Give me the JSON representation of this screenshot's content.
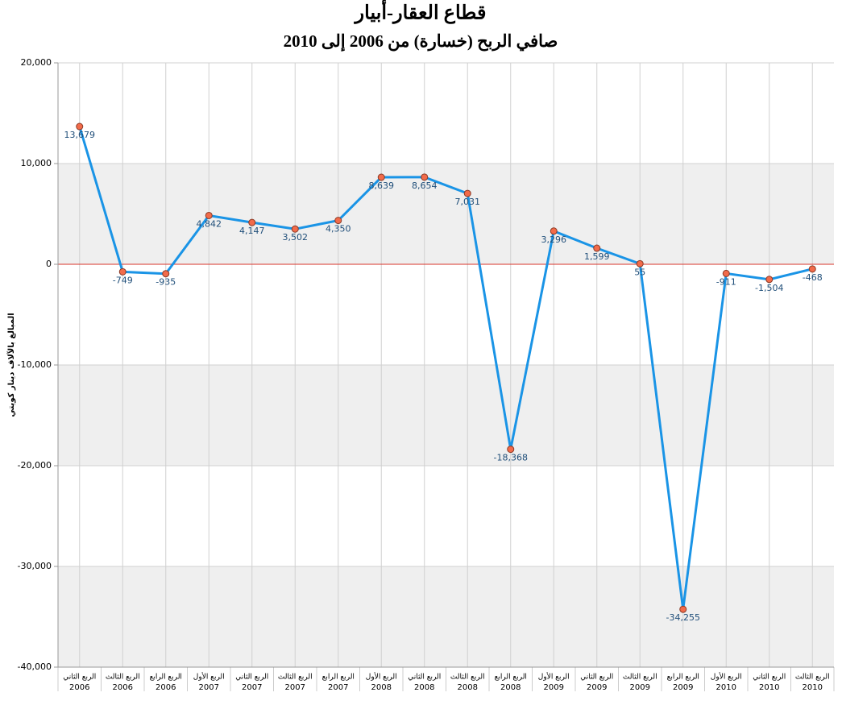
{
  "chart_data": {
    "type": "line",
    "title": "قطاع العقار-أبيار",
    "subtitle": "صافي الربح (خسارة) من 2006 إلى 2010",
    "y_label": "المبالغ بالآلاف دينار كويتي",
    "categories": [
      [
        "الربع الثاني",
        "2006"
      ],
      [
        "الربع الثالث",
        "2006"
      ],
      [
        "الربع الرابع",
        "2006"
      ],
      [
        "الربع الأول",
        "2007"
      ],
      [
        "الربع الثاني",
        "2007"
      ],
      [
        "الربع الثالث",
        "2007"
      ],
      [
        "الربع الرابع",
        "2007"
      ],
      [
        "الربع الأول",
        "2008"
      ],
      [
        "الربع الثاني",
        "2008"
      ],
      [
        "الربع الثالث",
        "2008"
      ],
      [
        "الربع الرابع",
        "2008"
      ],
      [
        "الربع الأول",
        "2009"
      ],
      [
        "الربع الثاني",
        "2009"
      ],
      [
        "الربع الثالث",
        "2009"
      ],
      [
        "الربع الرابع",
        "2009"
      ],
      [
        "الربع الأول",
        "2010"
      ],
      [
        "الربع الثاني",
        "2010"
      ],
      [
        "الربع الثالث",
        "2010"
      ]
    ],
    "values": [
      13679,
      -749,
      -935,
      4842,
      4147,
      3502,
      4350,
      8639,
      8654,
      7031,
      -18368,
      3296,
      1599,
      55,
      -34255,
      -911,
      -1504,
      -468
    ],
    "value_labels": [
      "13,679",
      "-749",
      "-935",
      "4,842",
      "4,147",
      "3,502",
      "4,350",
      "8,639",
      "8,654",
      "7,031",
      "-18,368",
      "3,296",
      "1,599",
      "55",
      "-34,255",
      "-911",
      "-1,504",
      "-468"
    ],
    "color": "#1a94e6",
    "marker_color": "#f26b4a",
    "band_color": "#efefef",
    "zero_line_color": "#d9342b",
    "ylim": [
      -40000,
      20000
    ],
    "yticks": [
      {
        "value": -40000,
        "label": "-40,000"
      },
      {
        "value": -30000,
        "label": "-30,000"
      },
      {
        "value": -20000,
        "label": "-20,000"
      },
      {
        "value": -10000,
        "label": "-10,000"
      },
      0,
      {
        "value": 10000,
        "label": "10,000"
      },
      {
        "value": 20000,
        "label": "20,000"
      }
    ],
    "grid": true
  }
}
